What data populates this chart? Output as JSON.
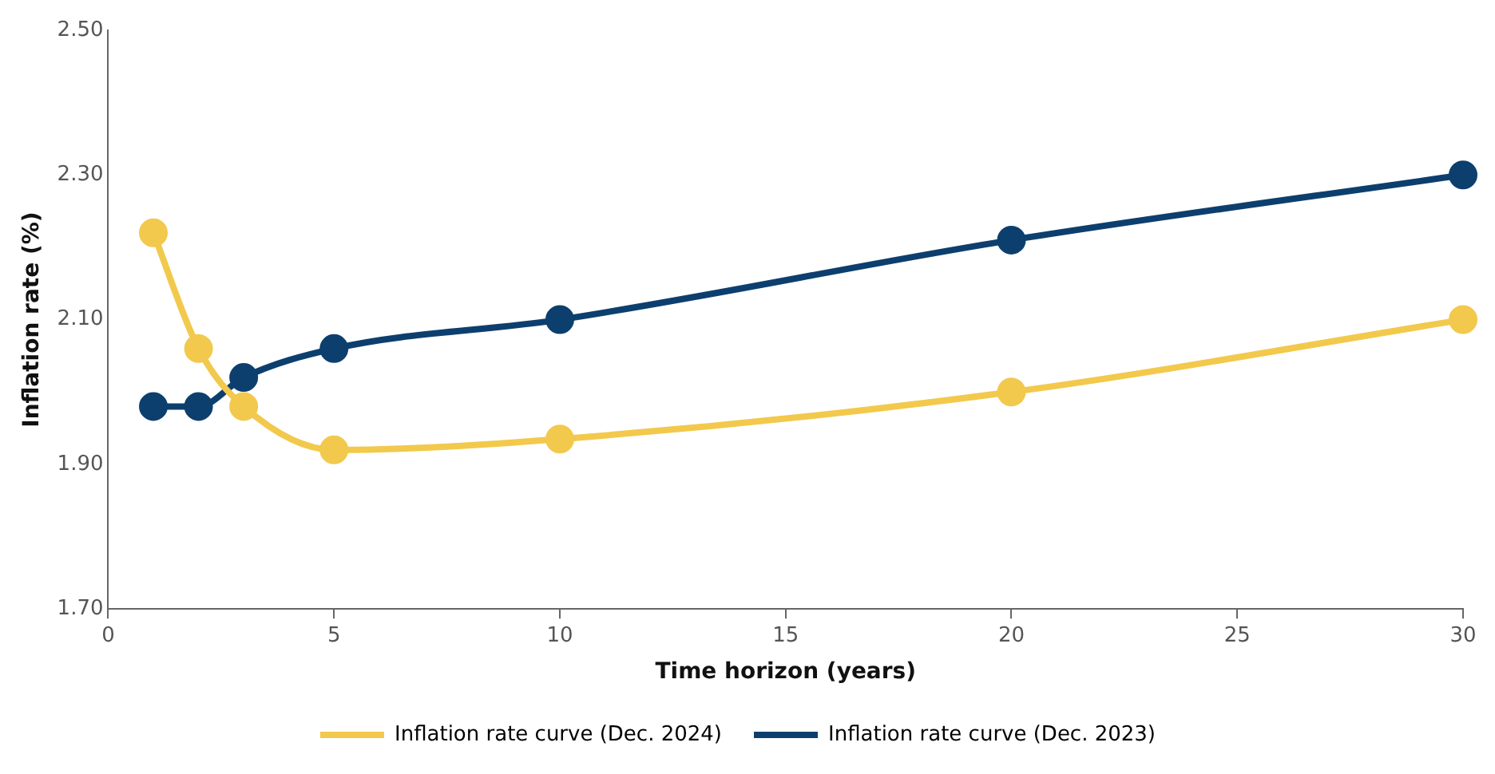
{
  "chart_data": {
    "type": "line",
    "xlabel": "Time horizon (years)",
    "ylabel": "Inflation rate (%)",
    "x": [
      1,
      2,
      3,
      5,
      10,
      20,
      30
    ],
    "series": [
      {
        "name": "Inflation rate curve (Dec. 2024)",
        "color": "#f2c94c",
        "values": [
          2.22,
          2.06,
          1.98,
          1.92,
          1.935,
          2.0,
          2.1
        ]
      },
      {
        "name": "Inflation rate curve (Dec. 2023)",
        "color": "#0d3f6e",
        "values": [
          1.98,
          1.98,
          2.02,
          2.06,
          2.1,
          2.21,
          2.3
        ]
      }
    ],
    "xlim": [
      0,
      30
    ],
    "xticks": [
      0,
      5,
      10,
      15,
      20,
      25,
      30
    ],
    "ylim": [
      1.7,
      2.5
    ],
    "yticks": [
      {
        "value": 1.7,
        "label": "1.70"
      },
      {
        "value": 1.9,
        "label": "1.90"
      },
      {
        "value": 2.1,
        "label": "2.10"
      },
      {
        "value": 2.3,
        "label": "2.30"
      },
      {
        "value": 2.5,
        "label": "2.50"
      }
    ],
    "grid": false,
    "legend": "bottom",
    "marker": "circle",
    "line_style": "solid"
  }
}
